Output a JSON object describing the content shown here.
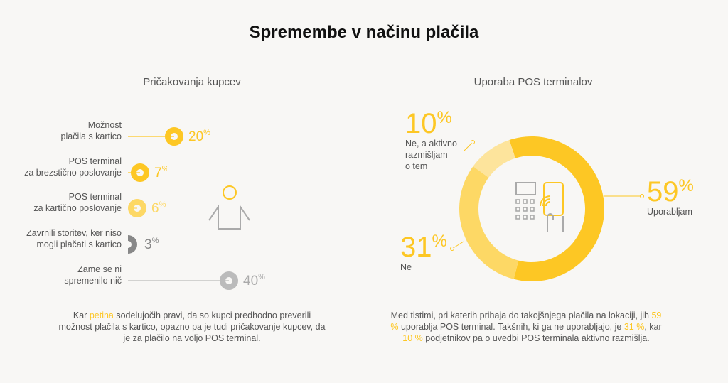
{
  "title": "Spremembe v načinu plačila",
  "left": {
    "subtitle": "Pričakovanja kupcev",
    "rows": [
      {
        "label1": "Možnost",
        "label2": "plačila s kartico",
        "value": "20",
        "unit": "%",
        "color": "#fdc724"
      },
      {
        "label1": "POS terminal",
        "label2": "za brezstično poslovanje",
        "value": "7",
        "unit": "%",
        "color": "#fdc724"
      },
      {
        "label1": "POS terminal",
        "label2": "za kartično poslovanje",
        "value": "6",
        "unit": "%",
        "color": "#fdd865"
      },
      {
        "label1": "Zavrnili storitev, ker niso",
        "label2": "mogli plačati s kartico",
        "value": "3",
        "unit": "%",
        "color": "#888888"
      },
      {
        "label1": "Zame se ni",
        "label2": "spremenilo nič",
        "value": "40",
        "unit": "%",
        "color": "#bbbbbb"
      }
    ],
    "paragraph": [
      {
        "t": "Kar ",
        "hl": false
      },
      {
        "t": "petina",
        "hl": true
      },
      {
        "t": " sodelujočih pravi, da so kupci predhodno preverili možnost plačila s kartico, opazno pa je tudi pričakovanje kupcev, da je za plačilo na voljo POS terminal.",
        "hl": false
      }
    ]
  },
  "chart_data": {
    "type": "pie",
    "title": "Uporaba POS terminalov",
    "slices": [
      {
        "label": "Uporabljam",
        "value": 59,
        "display": "59",
        "color": "#fdc724"
      },
      {
        "label": "Ne",
        "value": 31,
        "display": "31",
        "color": "#fdd865"
      },
      {
        "label": "Ne, a aktivno razmišljam o tem",
        "value": 10,
        "display": "10",
        "color": "#fde49c"
      }
    ],
    "unit": "%",
    "label_lines": {
      "Ne, a aktivno razmišljam o tem": [
        "Ne, a aktivno",
        "razmišljam",
        "o tem"
      ]
    }
  },
  "right": {
    "paragraph": [
      {
        "t": "Med tistimi, pri katerih prihaja do takojšnjega plačila na lokaciji, jih ",
        "hl": false
      },
      {
        "t": "59 %",
        "hl": true
      },
      {
        "t": " uporablja POS terminal. Takšnih, ki ga ne uporabljajo, je ",
        "hl": false
      },
      {
        "t": "31 %",
        "hl": true
      },
      {
        "t": ", kar ",
        "hl": false
      },
      {
        "t": "10 %",
        "hl": true
      },
      {
        "t": " podjetnikov pa o uvedbi POS terminala aktivno razmišlja.",
        "hl": false
      }
    ]
  }
}
